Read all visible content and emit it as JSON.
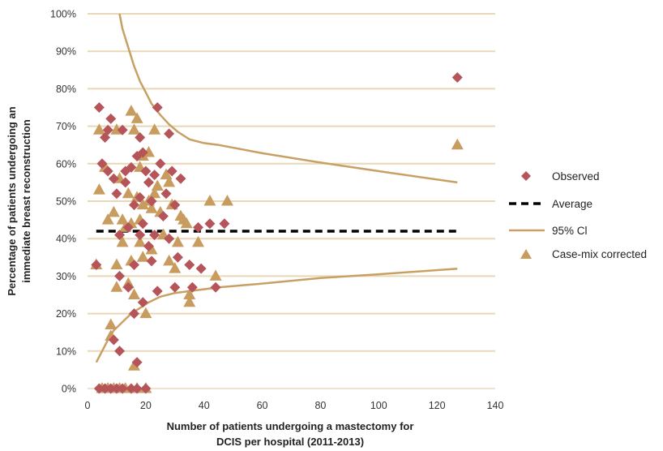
{
  "chart_data": {
    "type": "scatter",
    "xlabel_lines": [
      "Number of patients undergoing a mastectomy for",
      "DCIS per hospital (2011-2013)"
    ],
    "ylabel_lines": [
      "Percentage of patients undergoing an",
      "immediate breast reconstruction"
    ],
    "xlim": [
      0,
      140
    ],
    "ylim": [
      0,
      100
    ],
    "x_ticks": [
      0,
      20,
      40,
      60,
      80,
      100,
      120,
      140
    ],
    "y_ticks": [
      0,
      10,
      20,
      30,
      40,
      50,
      60,
      70,
      80,
      90,
      100
    ],
    "x_tick_labels": [
      "0",
      "20",
      "40",
      "60",
      "80",
      "100",
      "120",
      "140"
    ],
    "y_tick_labels": [
      "0%",
      "10%",
      "20%",
      "30%",
      "40%",
      "50%",
      "60%",
      "70%",
      "80%",
      "90%",
      "100%"
    ],
    "grid": "horizontal",
    "legend_position": "right",
    "colors": {
      "observed": "#b5555a",
      "corrected": "#c89c5e",
      "ci": "#c8a064",
      "average": "#000000",
      "grid": "#e9d7b5"
    },
    "series": [
      {
        "name": "Observed",
        "marker": "diamond",
        "points": [
          [
            3,
            33
          ],
          [
            4,
            0
          ],
          [
            4,
            75
          ],
          [
            5,
            60
          ],
          [
            6,
            67
          ],
          [
            6,
            0
          ],
          [
            7,
            69
          ],
          [
            7,
            58
          ],
          [
            8,
            72
          ],
          [
            8,
            0
          ],
          [
            9,
            56
          ],
          [
            9,
            13
          ],
          [
            10,
            0
          ],
          [
            10,
            52
          ],
          [
            11,
            41
          ],
          [
            11,
            30
          ],
          [
            11,
            10
          ],
          [
            12,
            69
          ],
          [
            12,
            0
          ],
          [
            13,
            58
          ],
          [
            13,
            55
          ],
          [
            14,
            43
          ],
          [
            14,
            27
          ],
          [
            15,
            0
          ],
          [
            15,
            59
          ],
          [
            16,
            49
          ],
          [
            16,
            20
          ],
          [
            16,
            33
          ],
          [
            17,
            62
          ],
          [
            17,
            7
          ],
          [
            17,
            0
          ],
          [
            18,
            67
          ],
          [
            18,
            51
          ],
          [
            18,
            41
          ],
          [
            19,
            63
          ],
          [
            19,
            44
          ],
          [
            19,
            23
          ],
          [
            20,
            58
          ],
          [
            20,
            0
          ],
          [
            21,
            55
          ],
          [
            21,
            38
          ],
          [
            22,
            50
          ],
          [
            22,
            34
          ],
          [
            23,
            57
          ],
          [
            23,
            41
          ],
          [
            24,
            75
          ],
          [
            24,
            26
          ],
          [
            25,
            60
          ],
          [
            26,
            46
          ],
          [
            27,
            52
          ],
          [
            28,
            68
          ],
          [
            28,
            40
          ],
          [
            29,
            58
          ],
          [
            30,
            49
          ],
          [
            30,
            27
          ],
          [
            31,
            35
          ],
          [
            32,
            56
          ],
          [
            35,
            33
          ],
          [
            36,
            27
          ],
          [
            38,
            43
          ],
          [
            39,
            32
          ],
          [
            42,
            44
          ],
          [
            44,
            27
          ],
          [
            47,
            44
          ],
          [
            127,
            83
          ]
        ]
      },
      {
        "name": "Case-mix corrected",
        "marker": "triangle",
        "points": [
          [
            3,
            33
          ],
          [
            4,
            69
          ],
          [
            4,
            53
          ],
          [
            5,
            0
          ],
          [
            6,
            59
          ],
          [
            7,
            0
          ],
          [
            7,
            45
          ],
          [
            8,
            17
          ],
          [
            8,
            14
          ],
          [
            9,
            0
          ],
          [
            9,
            47
          ],
          [
            10,
            69
          ],
          [
            10,
            33
          ],
          [
            10,
            27
          ],
          [
            11,
            56
          ],
          [
            11,
            0
          ],
          [
            12,
            45
          ],
          [
            12,
            39
          ],
          [
            13,
            0
          ],
          [
            13,
            43
          ],
          [
            14,
            52
          ],
          [
            14,
            28
          ],
          [
            15,
            74
          ],
          [
            15,
            44
          ],
          [
            15,
            34
          ],
          [
            16,
            6
          ],
          [
            16,
            69
          ],
          [
            16,
            25
          ],
          [
            17,
            72
          ],
          [
            17,
            51
          ],
          [
            17,
            0
          ],
          [
            18,
            59
          ],
          [
            18,
            45
          ],
          [
            18,
            39
          ],
          [
            19,
            62
          ],
          [
            19,
            49
          ],
          [
            19,
            35
          ],
          [
            20,
            0
          ],
          [
            20,
            20
          ],
          [
            21,
            63
          ],
          [
            21,
            50
          ],
          [
            22,
            48
          ],
          [
            22,
            37
          ],
          [
            23,
            69
          ],
          [
            23,
            52
          ],
          [
            24,
            54
          ],
          [
            25,
            47
          ],
          [
            26,
            41
          ],
          [
            27,
            57
          ],
          [
            28,
            55
          ],
          [
            28,
            34
          ],
          [
            29,
            49
          ],
          [
            30,
            32
          ],
          [
            31,
            39
          ],
          [
            32,
            46
          ],
          [
            33,
            45
          ],
          [
            34,
            44
          ],
          [
            35,
            23
          ],
          [
            35,
            25
          ],
          [
            38,
            39
          ],
          [
            42,
            50
          ],
          [
            44,
            30
          ],
          [
            48,
            50
          ],
          [
            127,
            65
          ]
        ]
      },
      {
        "name": "Average",
        "marker": "dashed-line",
        "y": 42,
        "x_range": [
          3,
          127
        ]
      },
      {
        "name": "95% CI",
        "marker": "line",
        "upper": [
          [
            11,
            100
          ],
          [
            12,
            96
          ],
          [
            14,
            91
          ],
          [
            16,
            86
          ],
          [
            18,
            82
          ],
          [
            20,
            79
          ],
          [
            22,
            76
          ],
          [
            25,
            73
          ],
          [
            28,
            70.5
          ],
          [
            31,
            68.5
          ],
          [
            35,
            66.5
          ],
          [
            40,
            65.5
          ],
          [
            45,
            65
          ],
          [
            60,
            62.8
          ],
          [
            80,
            60.3
          ],
          [
            100,
            58
          ],
          [
            127,
            55
          ]
        ],
        "lower": [
          [
            3,
            7
          ],
          [
            5,
            10
          ],
          [
            7,
            13
          ],
          [
            9,
            15.5
          ],
          [
            11,
            17
          ],
          [
            13,
            18.5
          ],
          [
            15,
            20
          ],
          [
            18,
            21.5
          ],
          [
            21,
            23
          ],
          [
            25,
            24.5
          ],
          [
            30,
            25.5
          ],
          [
            35,
            26
          ],
          [
            45,
            27
          ],
          [
            60,
            28
          ],
          [
            80,
            29.5
          ],
          [
            100,
            30.5
          ],
          [
            127,
            32
          ]
        ]
      }
    ],
    "legend": [
      {
        "label": "Observed",
        "marker": "diamond"
      },
      {
        "label": "Average",
        "marker": "dashed-line"
      },
      {
        "label": "95% Cl",
        "marker": "line"
      },
      {
        "label": "Case-mix corrected",
        "marker": "triangle"
      }
    ]
  }
}
